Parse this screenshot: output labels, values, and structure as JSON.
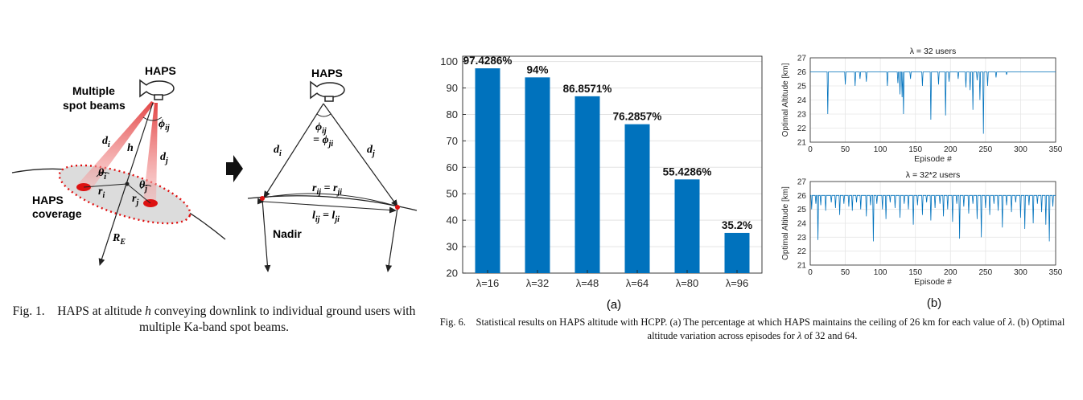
{
  "fig1": {
    "left": {
      "haps_label": "HAPS",
      "multiple_label_1": "Multiple",
      "multiple_label_2": "spot beams",
      "phi_label": "ϕ",
      "phi_sub": "ij",
      "h_label": "h",
      "di_label": "d",
      "di_sub": "i",
      "dj_label": "d",
      "dj_sub": "j",
      "thetai_label": "θ",
      "thetai_sub": "i",
      "thetaj_label": "θ",
      "thetaj_sub": "j",
      "ri_label": "r",
      "ri_sub": "i",
      "rj_label": "r",
      "rj_sub": "j",
      "coverage_1": "HAPS",
      "coverage_2": "coverage",
      "re_label": "R",
      "re_sub": "E"
    },
    "right": {
      "haps_label": "HAPS",
      "phi_label": "ϕ",
      "phi_sub": "ij",
      "phi_eq": "= ϕ",
      "phi_eq_sub": "ji",
      "di_label": "d",
      "di_sub": "i",
      "dj_label": "d",
      "dj_sub": "j",
      "rij_label": "r",
      "rij_sub": "ij",
      "rij_eq": " = r",
      "rij_eq_sub": "ji",
      "lij_label": "l",
      "lij_sub": "ij",
      "lij_eq": " = l",
      "lij_eq_sub": "ji",
      "nadir_label": "Nadir"
    },
    "caption_prefix": "Fig. 1.",
    "caption_text_1": "HAPS at altitude ",
    "caption_var": "h",
    "caption_text_2": " conveying downlink to individual ground users with multiple Ka-band spot beams."
  },
  "fig6": {
    "panel_a_label": "(a)",
    "panel_b_label": "(b)",
    "caption_prefix": "Fig. 6.",
    "caption_text_1": "Statistical results on HAPS altitude with HCPP. (a) The percentage at which HAPS maintains the ceiling of 26 km for each value of ",
    "caption_lambda": "λ",
    "caption_text_2": ". (b) Optimal altitude variation across episodes for ",
    "caption_lambda2": "λ",
    "caption_text_3": " of 32 and 64."
  },
  "chart_data": [
    {
      "type": "bar",
      "categories": [
        "λ=16",
        "λ=32",
        "λ=48",
        "λ=64",
        "λ=80",
        "λ=96"
      ],
      "values": [
        97.4286,
        94,
        86.8571,
        76.2857,
        55.4286,
        35.2
      ],
      "data_labels": [
        "97.4286%",
        "94%",
        "86.8571%",
        "76.2857%",
        "55.4286%",
        "35.2%"
      ],
      "yticks": [
        "20",
        "30",
        "40",
        "50",
        "60",
        "70",
        "80",
        "90",
        "100"
      ],
      "ylim": [
        20,
        102
      ],
      "grid": true,
      "color": "#0072BD"
    },
    {
      "type": "line",
      "title": "λ = 32 users",
      "xlabel": "Episode #",
      "ylabel": "Optimal Altitude [km]",
      "xlim": [
        0,
        350
      ],
      "ylim": [
        21,
        27
      ],
      "xticks": [
        "0",
        "50",
        "100",
        "150",
        "200",
        "250",
        "300",
        "350"
      ],
      "yticks": [
        "21",
        "22",
        "23",
        "24",
        "25",
        "26",
        "27"
      ],
      "baseline": 26,
      "dips": [
        [
          25,
          23.0
        ],
        [
          50,
          25.1
        ],
        [
          64,
          25.0
        ],
        [
          71,
          25.5
        ],
        [
          80,
          25.3
        ],
        [
          110,
          25.0
        ],
        [
          125,
          25.2
        ],
        [
          128,
          24.4
        ],
        [
          131,
          24.2
        ],
        [
          133,
          23.0
        ],
        [
          143,
          25.5
        ],
        [
          160,
          25.0
        ],
        [
          172,
          22.6
        ],
        [
          183,
          25.1
        ],
        [
          193,
          22.9
        ],
        [
          198,
          25.3
        ],
        [
          211,
          25.5
        ],
        [
          222,
          24.9
        ],
        [
          228,
          24.7
        ],
        [
          232,
          23.3
        ],
        [
          238,
          25.4
        ],
        [
          242,
          24.0
        ],
        [
          247,
          21.6
        ],
        [
          253,
          25.0
        ],
        [
          265,
          25.6
        ],
        [
          280,
          25.8
        ]
      ],
      "color": "#0072BD",
      "grid": true
    },
    {
      "type": "line",
      "title": "λ = 32*2 users",
      "xlabel": "Episode #",
      "ylabel": "Optimal Altitude [km]",
      "xlim": [
        0,
        350
      ],
      "ylim": [
        21,
        27
      ],
      "xticks": [
        "0",
        "50",
        "100",
        "150",
        "200",
        "250",
        "300",
        "350"
      ],
      "yticks": [
        "21",
        "22",
        "23",
        "24",
        "25",
        "26",
        "27"
      ],
      "baseline": 26,
      "dips": [
        [
          2,
          25.0
        ],
        [
          8,
          25.4
        ],
        [
          11,
          22.8
        ],
        [
          15,
          25.3
        ],
        [
          22,
          24.9
        ],
        [
          30,
          25.5
        ],
        [
          36,
          25.1
        ],
        [
          42,
          24.6
        ],
        [
          48,
          25.4
        ],
        [
          55,
          25.2
        ],
        [
          60,
          24.9
        ],
        [
          66,
          25.5
        ],
        [
          72,
          25.0
        ],
        [
          80,
          24.5
        ],
        [
          86,
          25.3
        ],
        [
          90,
          22.7
        ],
        [
          95,
          25.4
        ],
        [
          103,
          25.0
        ],
        [
          108,
          24.3
        ],
        [
          114,
          25.5
        ],
        [
          121,
          25.1
        ],
        [
          128,
          24.4
        ],
        [
          134,
          25.4
        ],
        [
          140,
          25.0
        ],
        [
          147,
          23.9
        ],
        [
          153,
          25.3
        ],
        [
          160,
          24.6
        ],
        [
          166,
          25.5
        ],
        [
          172,
          24.2
        ],
        [
          178,
          25.1
        ],
        [
          185,
          25.4
        ],
        [
          190,
          24.5
        ],
        [
          196,
          25.0
        ],
        [
          203,
          24.1
        ],
        [
          209,
          25.4
        ],
        [
          213,
          22.9
        ],
        [
          219,
          25.2
        ],
        [
          226,
          24.7
        ],
        [
          232,
          25.4
        ],
        [
          238,
          24.3
        ],
        [
          244,
          23.0
        ],
        [
          250,
          25.1
        ],
        [
          256,
          24.6
        ],
        [
          262,
          25.4
        ],
        [
          268,
          24.9
        ],
        [
          274,
          23.7
        ],
        [
          280,
          25.3
        ],
        [
          287,
          24.8
        ],
        [
          293,
          25.5
        ],
        [
          300,
          24.4
        ],
        [
          306,
          23.6
        ],
        [
          312,
          25.3
        ],
        [
          318,
          24.0
        ],
        [
          324,
          25.4
        ],
        [
          330,
          24.8
        ],
        [
          336,
          23.9
        ],
        [
          341,
          22.7
        ],
        [
          346,
          25.2
        ]
      ],
      "color": "#0072BD",
      "grid": true
    }
  ]
}
